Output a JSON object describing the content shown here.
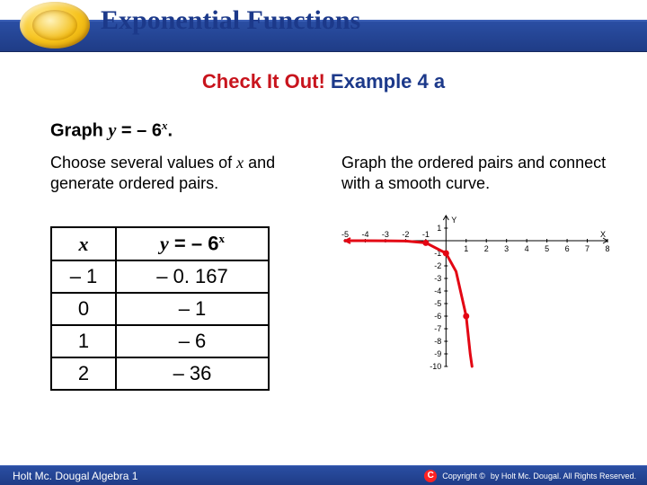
{
  "header": {
    "title": "Exponential Functions",
    "title_color": "#1c398a",
    "bar_color": "#23438f"
  },
  "subtitle": {
    "red_text": "Check It Out!",
    "blue_text": "Example 4 a",
    "red_color": "#c8141d",
    "blue_color": "#1c398a"
  },
  "prompt": {
    "prefix": "Graph ",
    "var_y": "y",
    "eq": " = – 6",
    "var_x": "x",
    "suffix": "."
  },
  "left_blurb": "Choose several values of x and generate ordered pairs.",
  "right_blurb": "Graph the ordered pairs and connect with a smooth curve.",
  "table": {
    "header_x": "x",
    "header_y_prefix": "y",
    "header_y_mid": " = – 6",
    "header_y_sup": "x",
    "rows": [
      {
        "x": "– 1",
        "y": "– 0. 167"
      },
      {
        "x": "0",
        "y": "– 1"
      },
      {
        "x": "1",
        "y": "– 6"
      },
      {
        "x": "2",
        "y": "– 36"
      }
    ],
    "col_x_width": 72,
    "col_y_width": 170
  },
  "chart": {
    "type": "line",
    "curve_color": "#e30613",
    "point_color": "#e30613",
    "axis_color": "#000000",
    "tick_color": "#000000",
    "background_color": "#ffffff",
    "label_fontsize": 9,
    "xlim": [
      -5,
      8
    ],
    "ylim": [
      -10,
      2
    ],
    "xticks": [
      -5,
      -4,
      -3,
      -2,
      -1,
      1,
      2,
      3,
      4,
      5,
      6,
      7,
      8
    ],
    "yticks": [
      1,
      -1,
      -2,
      -3,
      -4,
      -5,
      -6,
      -7,
      -8,
      -9,
      -10
    ],
    "y_label": "Y",
    "x_label": "X",
    "curve_points": [
      [
        -5,
        -0.0001
      ],
      [
        -4,
        -0.0008
      ],
      [
        -3,
        -0.0046
      ],
      [
        -2,
        -0.028
      ],
      [
        -1,
        -0.167
      ],
      [
        0,
        -1
      ],
      [
        0.5,
        -2.45
      ],
      [
        1,
        -6
      ],
      [
        1.2,
        -9.0
      ],
      [
        1.29,
        -10
      ]
    ],
    "plotted_dots": [
      [
        -1,
        -0.167
      ],
      [
        0,
        -1
      ],
      [
        1,
        -6
      ]
    ],
    "line_width": 3,
    "dot_radius": 3.5
  },
  "footer": {
    "left": "Holt Mc. Dougal Algebra 1",
    "right": "by Holt Mc. Dougal. All Rights Reserved.",
    "copyright_word": "Copyright ©"
  }
}
